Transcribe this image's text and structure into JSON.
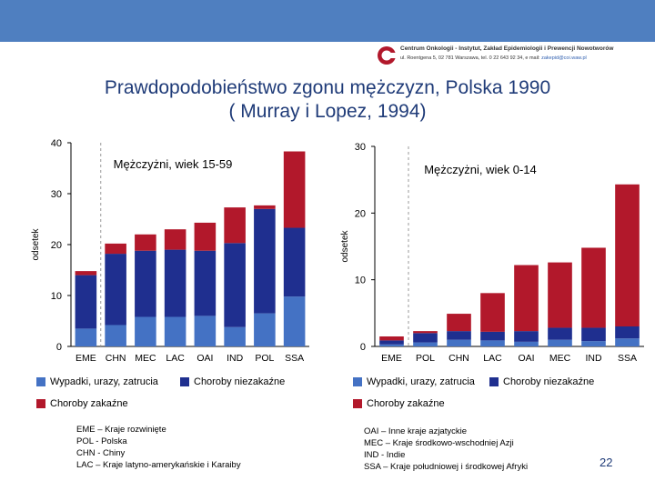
{
  "header": {
    "org_name": "Centrum Onkologii - Instytut, Zakład Epidemiologii i Prewencji Nowotworów",
    "org_address": "ul. Roentgena 5, 02 781 Warszawa, tel. 0 22 643 92 34, e mail:",
    "org_email": "zakepid@coi.waw.pl"
  },
  "title": {
    "line1": "Prawdopodobieństwo zgonu mężczyzn, Polska 1990",
    "line2": "( Murray i Lopez, 1994)"
  },
  "colors": {
    "injuries": "#4472c4",
    "noncommunicable": "#1f2f8f",
    "communicable": "#b2182b",
    "title": "#1f3b78",
    "topbar": "#4f7fc0"
  },
  "chart_data": [
    {
      "type": "bar",
      "stacked": true,
      "title": "Mężczyżni, wiek 15-59",
      "ylabel": "odsetek",
      "xlabel": "",
      "ylim": [
        0,
        40
      ],
      "yticks": [
        0,
        10,
        20,
        30,
        40
      ],
      "categories": [
        "EME",
        "CHN",
        "MEC",
        "LAC",
        "OAI",
        "IND",
        "POL",
        "SSA"
      ],
      "dashed_separator_after_index": 0,
      "series": [
        {
          "name": "Wypadki, urazy, zatrucia",
          "values": [
            3.5,
            4.2,
            5.8,
            5.8,
            6.0,
            3.8,
            6.5,
            9.8
          ]
        },
        {
          "name": "Choroby niezakaźne",
          "values": [
            10.5,
            14.0,
            13.0,
            13.2,
            12.8,
            16.5,
            20.5,
            13.5
          ]
        },
        {
          "name": "Choroby zakaźne",
          "values": [
            0.8,
            2.0,
            3.2,
            4.0,
            5.5,
            7.0,
            0.7,
            15.0
          ]
        }
      ],
      "legend": [
        "Wypadki, urazy, zatrucia",
        "Choroby niezakaźne",
        "Choroby zakaźne"
      ]
    },
    {
      "type": "bar",
      "stacked": true,
      "title": "Mężczyżni, wiek 0-14",
      "ylabel": "odsetek",
      "xlabel": "",
      "ylim": [
        0,
        30
      ],
      "yticks": [
        0,
        10,
        20,
        30
      ],
      "categories": [
        "EME",
        "POL",
        "CHN",
        "LAC",
        "OAI",
        "MEC",
        "IND",
        "SSA"
      ],
      "dashed_separator_after_index": 0,
      "series": [
        {
          "name": "Wypadki, urazy, zatrucia",
          "values": [
            0.3,
            0.6,
            1.0,
            0.9,
            0.7,
            1.0,
            0.8,
            1.2
          ]
        },
        {
          "name": "Choroby niezakaźne",
          "values": [
            0.6,
            1.4,
            1.3,
            1.3,
            1.6,
            1.8,
            2.0,
            1.8
          ]
        },
        {
          "name": "Choroby zakaźne",
          "values": [
            0.6,
            0.3,
            2.6,
            5.8,
            9.9,
            9.8,
            12.0,
            21.3
          ]
        }
      ],
      "legend": [
        "Wypadki, urazy, zatrucia",
        "Choroby niezakaźne",
        "Choroby zakaźne"
      ]
    }
  ],
  "notes_left": [
    "EME – Kraje rozwinięte",
    "POL - Polska",
    "CHN - Chiny",
    "LAC – Kraje latyno-amerykańskie i Karaiby"
  ],
  "notes_right": [
    "OAI – Inne kraje azjatyckie",
    "MEC – Kraje środkowo-wschodniej Azji",
    "IND - Indie",
    "SSA – Kraje południowej i środkowej Afryki"
  ],
  "page_number": "22"
}
